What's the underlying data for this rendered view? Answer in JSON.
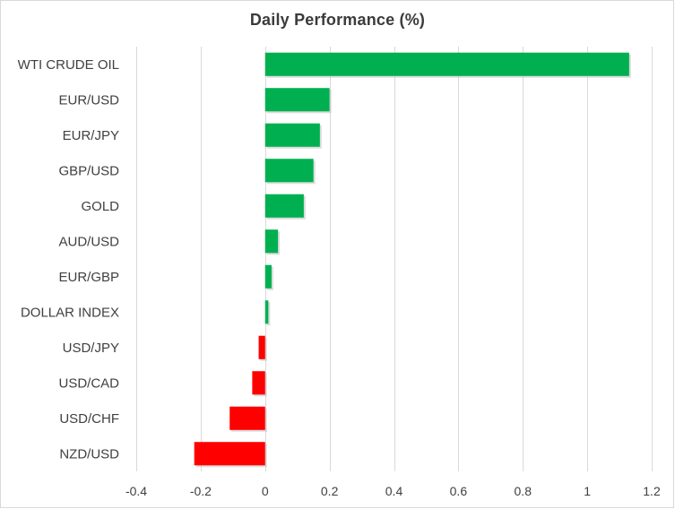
{
  "chart_data": {
    "type": "bar",
    "orientation": "horizontal",
    "title": "Daily Performance  (%)",
    "xlabel": "",
    "ylabel": "",
    "categories": [
      "WTI CRUDE OIL",
      "EUR/USD",
      "EUR/JPY",
      "GBP/USD",
      "GOLD",
      "AUD/USD",
      "EUR/GBP",
      "DOLLAR INDEX",
      "USD/JPY",
      "USD/CAD",
      "USD/CHF",
      "NZD/USD"
    ],
    "values": [
      1.13,
      0.2,
      0.17,
      0.15,
      0.12,
      0.04,
      0.02,
      0.01,
      -0.02,
      -0.04,
      -0.11,
      -0.22
    ],
    "xlim": [
      -0.4,
      1.2
    ],
    "xticks": [
      "-0.4",
      "-0.2",
      "0",
      "0.2",
      "0.4",
      "0.6",
      "0.8",
      "1",
      "1.2"
    ],
    "xtick_values": [
      -0.4,
      -0.2,
      0,
      0.2,
      0.4,
      0.6,
      0.8,
      1,
      1.2
    ],
    "grid": true,
    "legend": "none",
    "colors": {
      "positive": "#00b050",
      "negative": "#ff0000",
      "grid": "#d9d9d9",
      "text": "#404040"
    }
  }
}
